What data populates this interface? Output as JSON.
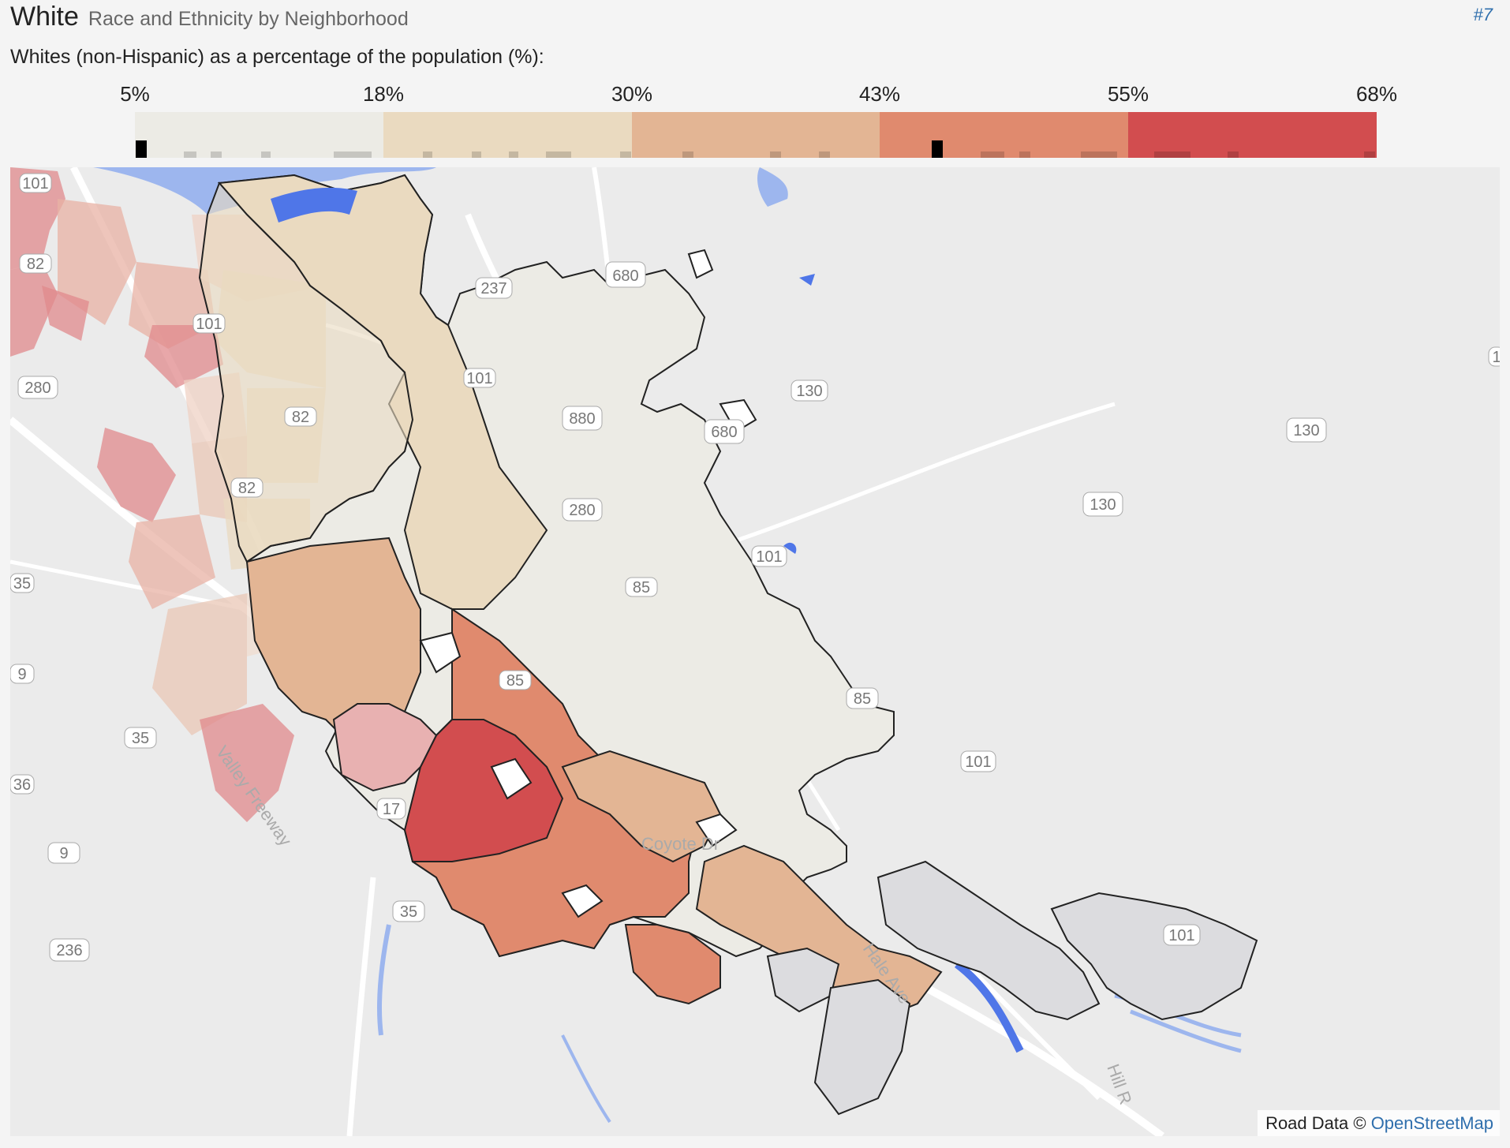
{
  "header": {
    "title": "White",
    "subtitle": "Race and Ethnicity by Neighborhood",
    "rank": "#7"
  },
  "legend": {
    "description": "Whites (non-Hispanic) as a percentage of the population (%):",
    "ticks": [
      "5%",
      "18%",
      "30%",
      "43%",
      "55%",
      "68%"
    ],
    "colors": [
      "#ecebe5",
      "#eadac0",
      "#e3b594",
      "#e08a6e",
      "#d24d4f"
    ],
    "marker_color": "#000000"
  },
  "map": {
    "colors": {
      "background": "#ebebeb",
      "water": "#9db6ee",
      "water_in_area": "#4f76e8",
      "roads": "#ffffff",
      "outline": "#222222",
      "neighbor_gray": "#dcdcdf"
    },
    "highway_shields": {
      "s101a": "101",
      "s101b": "101",
      "s101c": "101",
      "s101d": "101",
      "s101e": "101",
      "s101f": "101",
      "s82a": "82",
      "s82b": "82",
      "s82c": "82",
      "s280a": "280",
      "s280b": "280",
      "s680a": "680",
      "s680b": "680",
      "s237": "237",
      "s880": "880",
      "s130a": "130",
      "s130b": "130",
      "s130c": "130",
      "s85a": "85",
      "s85b": "85",
      "s85c": "85",
      "s35a": "35",
      "s35b": "35",
      "s35c": "35",
      "s9a": "9",
      "s9b": "9",
      "s17": "17",
      "s236": "236",
      "s36": "36",
      "s1": "1"
    },
    "road_labels": {
      "valley_freeway": "Valley Freeway",
      "hale_ave": "Hale Ave",
      "hill_rd": "Hill R",
      "coyote": "Coyote Dr"
    },
    "attribution_text": "Road Data ©",
    "attribution_link": "OpenStreetMap"
  }
}
